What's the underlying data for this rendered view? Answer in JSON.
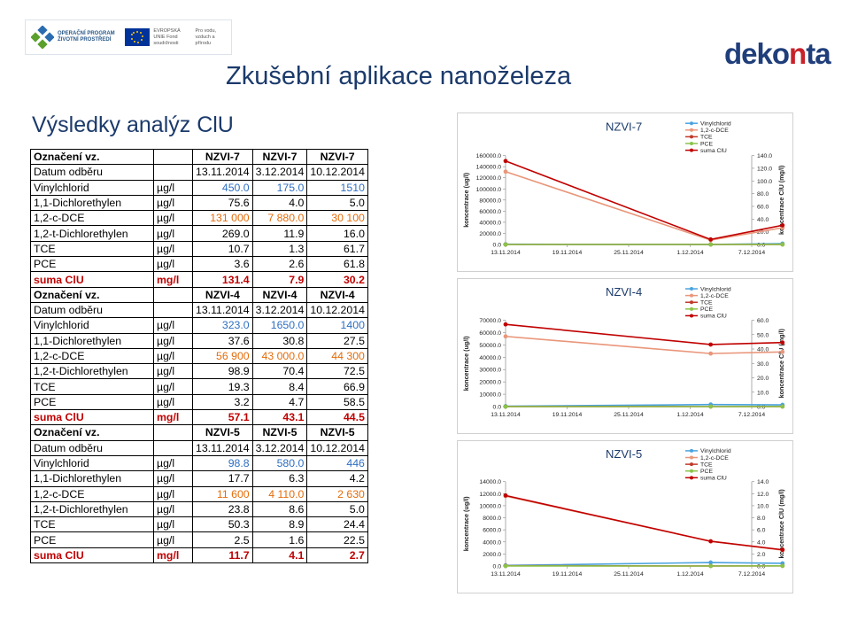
{
  "header": {
    "title": "Zkušební aplikace nanoželeza",
    "subtitle": "Výsledky analýz ClU",
    "eu_logo": {
      "op": "OPERAČNÍ PROGRAM ŽIVOTNÍ PROSTŘEDÍ",
      "eu": "EVROPSKÁ UNIE Fond soudržnosti",
      "pr": "Pro vodu, vzduch a přírodu"
    },
    "brand_logo": {
      "main": "deko",
      "accent": "n",
      "tail": "ta"
    }
  },
  "colors": {
    "suma": "#c00000",
    "vinylchlorid": "#2e6fc3",
    "dce12c": "#e46c0a"
  },
  "table": {
    "blocks": [
      {
        "label_hdr": "Označení vz.",
        "wells": [
          "NZVI-7",
          "NZVI-7",
          "NZVI-7"
        ],
        "date_label": "Datum odběru",
        "dates": [
          "13.11.2014",
          "3.12.2014",
          "10.12.2014"
        ],
        "rows": [
          {
            "name": "Vinylchlorid",
            "unit": "µg/l",
            "v": [
              "450.0",
              "175.0",
              "1510"
            ],
            "cls": "blue"
          },
          {
            "name": "1,1-Dichlorethylen",
            "unit": "µg/l",
            "v": [
              "75.6",
              "4.0",
              "5.0"
            ],
            "cls": ""
          },
          {
            "name": "1,2-c-DCE",
            "unit": "µg/l",
            "v": [
              "131 000",
              "7 880.0",
              "30 100"
            ],
            "cls": "orange"
          },
          {
            "name": "1,2-t-Dichlorethylen",
            "unit": "µg/l",
            "v": [
              "269.0",
              "11.9",
              "16.0"
            ],
            "cls": ""
          },
          {
            "name": "TCE",
            "unit": "µg/l",
            "v": [
              "10.7",
              "1.3",
              "61.7"
            ],
            "cls": ""
          },
          {
            "name": "PCE",
            "unit": "µg/l",
            "v": [
              "3.6",
              "2.6",
              "61.8"
            ],
            "cls": ""
          }
        ],
        "suma": {
          "name": "suma ClU",
          "unit": "mg/l",
          "v": [
            "131.4",
            "7.9",
            "30.2"
          ]
        }
      },
      {
        "label_hdr": "Označení vz.",
        "wells": [
          "NZVI-4",
          "NZVI-4",
          "NZVI-4"
        ],
        "date_label": "Datum odběru",
        "dates": [
          "13.11.2014",
          "3.12.2014",
          "10.12.2014"
        ],
        "rows": [
          {
            "name": "Vinylchlorid",
            "unit": "µg/l",
            "v": [
              "323.0",
              "1650.0",
              "1400"
            ],
            "cls": "blue"
          },
          {
            "name": "1,1-Dichlorethylen",
            "unit": "µg/l",
            "v": [
              "37.6",
              "30.8",
              "27.5"
            ],
            "cls": ""
          },
          {
            "name": "1,2-c-DCE",
            "unit": "µg/l",
            "v": [
              "56 900",
              "43 000.0",
              "44 300"
            ],
            "cls": "orange"
          },
          {
            "name": "1,2-t-Dichlorethylen",
            "unit": "µg/l",
            "v": [
              "98.9",
              "70.4",
              "72.5"
            ],
            "cls": ""
          },
          {
            "name": "TCE",
            "unit": "µg/l",
            "v": [
              "19.3",
              "8.4",
              "66.9"
            ],
            "cls": ""
          },
          {
            "name": "PCE",
            "unit": "µg/l",
            "v": [
              "3.2",
              "4.7",
              "58.5"
            ],
            "cls": ""
          }
        ],
        "suma": {
          "name": "suma ClU",
          "unit": "mg/l",
          "v": [
            "57.1",
            "43.1",
            "44.5"
          ]
        }
      },
      {
        "label_hdr": "Označení vz.",
        "wells": [
          "NZVI-5",
          "NZVI-5",
          "NZVI-5"
        ],
        "date_label": "Datum odběru",
        "dates": [
          "13.11.2014",
          "3.12.2014",
          "10.12.2014"
        ],
        "rows": [
          {
            "name": "Vinylchlorid",
            "unit": "µg/l",
            "v": [
              "98.8",
              "580.0",
              "446"
            ],
            "cls": "blue"
          },
          {
            "name": "1,1-Dichlorethylen",
            "unit": "µg/l",
            "v": [
              "17.7",
              "6.3",
              "4.2"
            ],
            "cls": ""
          },
          {
            "name": "1,2-c-DCE",
            "unit": "µg/l",
            "v": [
              "11 600",
              "4 110.0",
              "2 630"
            ],
            "cls": "orange"
          },
          {
            "name": "1,2-t-Dichlorethylen",
            "unit": "µg/l",
            "v": [
              "23.8",
              "8.6",
              "5.0"
            ],
            "cls": ""
          },
          {
            "name": "TCE",
            "unit": "µg/l",
            "v": [
              "50.3",
              "8.9",
              "24.4"
            ],
            "cls": ""
          },
          {
            "name": "PCE",
            "unit": "µg/l",
            "v": [
              "2.5",
              "1.6",
              "22.5"
            ],
            "cls": ""
          }
        ],
        "suma": {
          "name": "suma ClU",
          "unit": "mg/l",
          "v": [
            "11.7",
            "4.1",
            "2.7"
          ]
        }
      }
    ]
  },
  "chart_data": [
    {
      "type": "line",
      "title": "NZVI-7",
      "x": [
        "13.11.2014",
        "3.12.2014",
        "10.12.2014"
      ],
      "xticks": [
        "13.11.2014",
        "19.11.2014",
        "25.11.2014",
        "1.12.2014",
        "7.12.2014"
      ],
      "ylabel": "koncentrace (ug/l)",
      "y2label": "koncentrace ClU (mg/l)",
      "ylim": [
        0,
        160000
      ],
      "yticks": [
        "0.0",
        "20000.0",
        "40000.0",
        "60000.0",
        "80000.0",
        "100000.0",
        "120000.0",
        "140000.0",
        "160000.0"
      ],
      "y2lim": [
        0,
        140
      ],
      "y2ticks": [
        "0.0",
        "20.0",
        "40.0",
        "60.0",
        "80.0",
        "100.0",
        "120.0",
        "140.0"
      ],
      "legend_position": "top-right",
      "series": [
        {
          "name": "Vinylchlorid",
          "color": "#4aa3df",
          "axis": "left",
          "values": [
            450,
            175,
            1510
          ]
        },
        {
          "name": "1,2-c-DCE",
          "color": "#e9967a",
          "axis": "left",
          "values": [
            131000,
            7880,
            30100
          ]
        },
        {
          "name": "TCE",
          "color": "#c0392b",
          "axis": "left",
          "values": [
            10.7,
            1.3,
            61.7
          ]
        },
        {
          "name": "PCE",
          "color": "#8bc34a",
          "axis": "left",
          "values": [
            3.6,
            2.6,
            61.8
          ]
        },
        {
          "name": "suma ClU",
          "color": "#c00000",
          "axis": "right",
          "values": [
            131.4,
            7.9,
            30.2
          ]
        }
      ]
    },
    {
      "type": "line",
      "title": "NZVI-4",
      "x": [
        "13.11.2014",
        "3.12.2014",
        "10.12.2014"
      ],
      "xticks": [
        "13.11.2014",
        "19.11.2014",
        "25.11.2014",
        "1.12.2014",
        "7.12.2014"
      ],
      "ylabel": "koncentrace (ug/l)",
      "y2label": "koncentrace ClU (mg/l)",
      "ylim": [
        0,
        70000
      ],
      "yticks": [
        "0.0",
        "10000.0",
        "20000.0",
        "30000.0",
        "40000.0",
        "50000.0",
        "60000.0",
        "70000.0"
      ],
      "y2lim": [
        0,
        60
      ],
      "y2ticks": [
        "0.0",
        "10.0",
        "20.0",
        "30.0",
        "40.0",
        "50.0",
        "60.0"
      ],
      "legend_position": "top-right",
      "series": [
        {
          "name": "Vinylchlorid",
          "color": "#4aa3df",
          "axis": "left",
          "values": [
            323,
            1650,
            1400
          ]
        },
        {
          "name": "1,2-c-DCE",
          "color": "#e9967a",
          "axis": "left",
          "values": [
            56900,
            43000,
            44300
          ]
        },
        {
          "name": "TCE",
          "color": "#c0392b",
          "axis": "left",
          "values": [
            19.3,
            8.4,
            66.9
          ]
        },
        {
          "name": "PCE",
          "color": "#8bc34a",
          "axis": "left",
          "values": [
            3.2,
            4.7,
            58.5
          ]
        },
        {
          "name": "suma ClU",
          "color": "#c00000",
          "axis": "right",
          "values": [
            57.1,
            43.1,
            44.5
          ]
        }
      ]
    },
    {
      "type": "line",
      "title": "NZVI-5",
      "x": [
        "13.11.2014",
        "3.12.2014",
        "10.12.2014"
      ],
      "xticks": [
        "13.11.2014",
        "19.11.2014",
        "25.11.2014",
        "1.12.2014",
        "7.12.2014"
      ],
      "ylabel": "koncentrace (ug/l)",
      "y2label": "koncentrace ClU (mg/l)",
      "ylim": [
        0,
        14000
      ],
      "yticks": [
        "0.0",
        "2000.0",
        "4000.0",
        "6000.0",
        "8000.0",
        "10000.0",
        "12000.0",
        "14000.0"
      ],
      "y2lim": [
        0,
        14
      ],
      "y2ticks": [
        "0.0",
        "2.0",
        "4.0",
        "6.0",
        "8.0",
        "10.0",
        "12.0",
        "14.0"
      ],
      "legend_position": "top-right",
      "series": [
        {
          "name": "Vinylchlorid",
          "color": "#4aa3df",
          "axis": "left",
          "values": [
            98.8,
            580,
            446
          ]
        },
        {
          "name": "1,2-c-DCE",
          "color": "#e9967a",
          "axis": "left",
          "values": [
            11600,
            4110,
            2630
          ]
        },
        {
          "name": "TCE",
          "color": "#c0392b",
          "axis": "left",
          "values": [
            50.3,
            8.9,
            24.4
          ]
        },
        {
          "name": "PCE",
          "color": "#8bc34a",
          "axis": "left",
          "values": [
            2.5,
            1.6,
            22.5
          ]
        },
        {
          "name": "suma ClU",
          "color": "#c00000",
          "axis": "right",
          "values": [
            11.7,
            4.1,
            2.7
          ]
        }
      ]
    }
  ]
}
